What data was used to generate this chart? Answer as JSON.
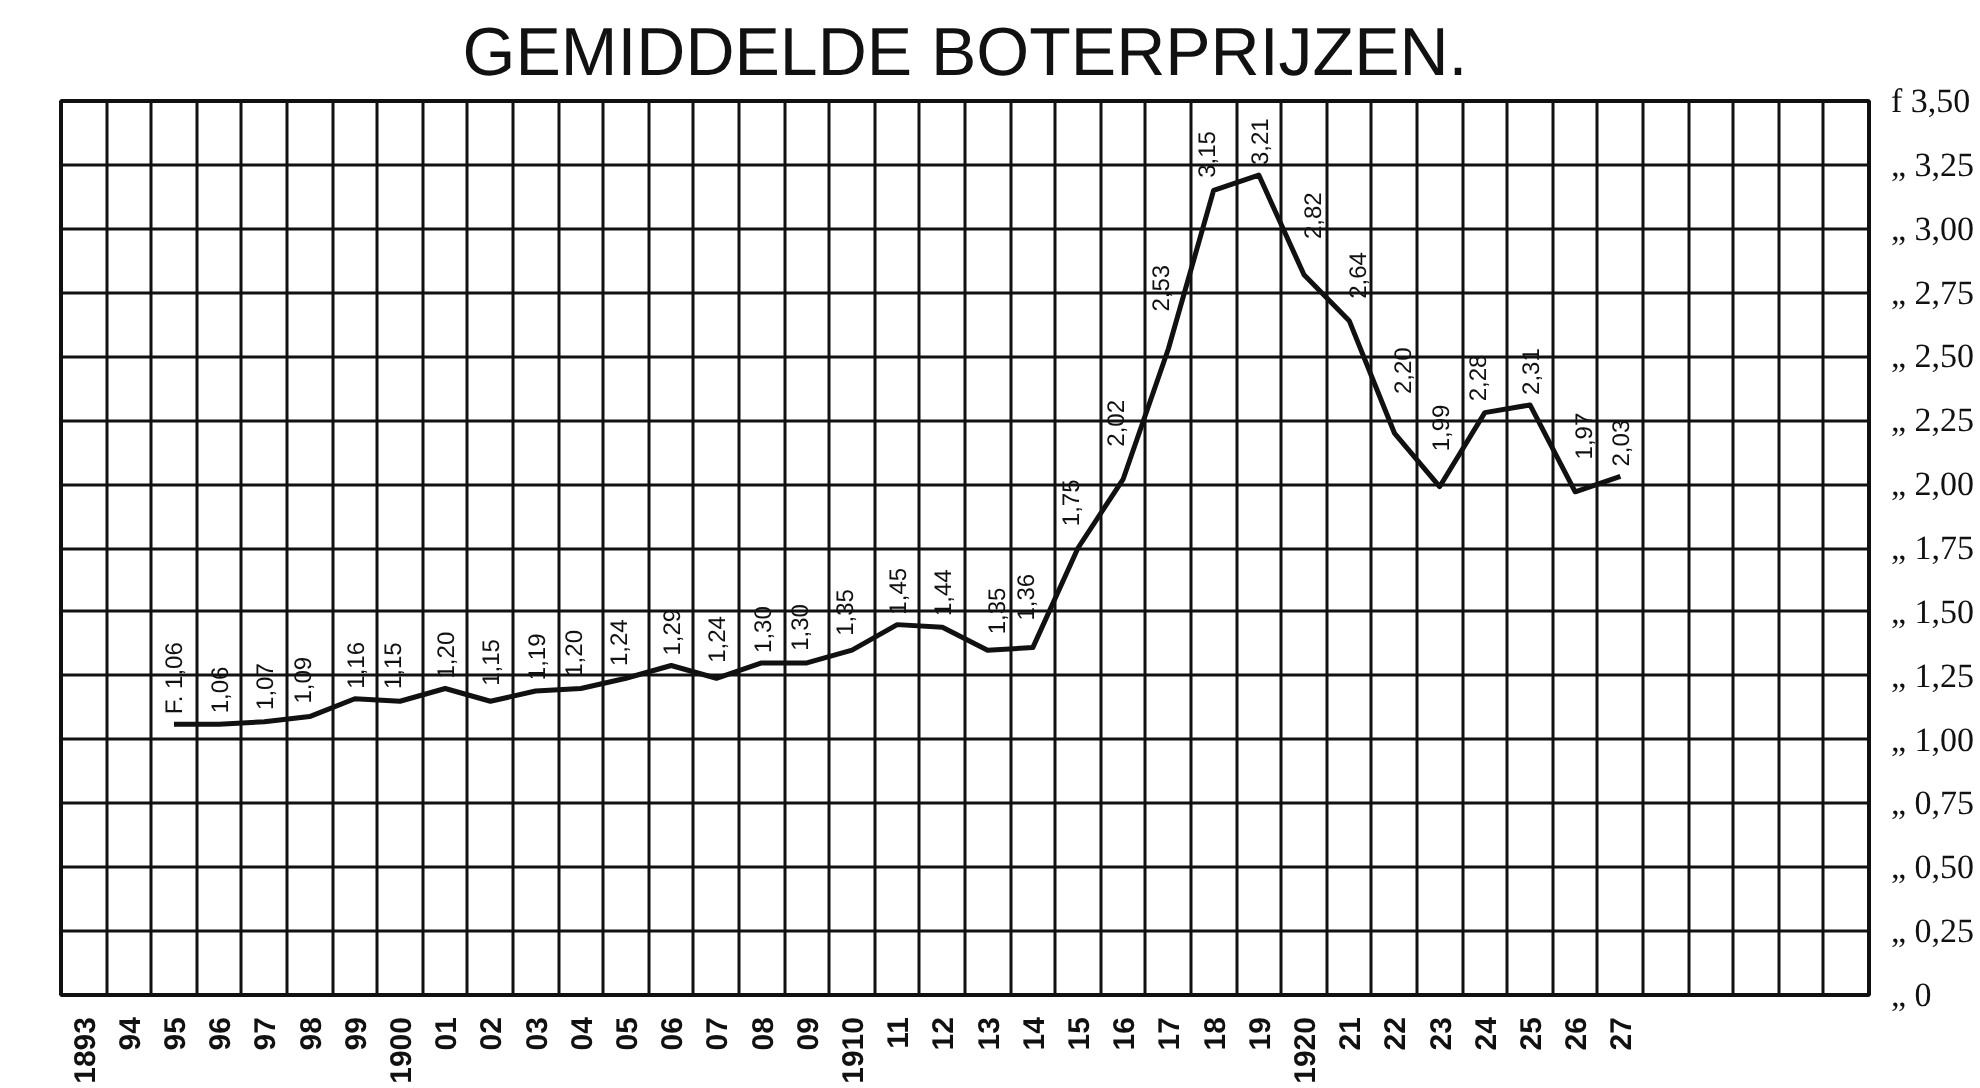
{
  "chart_data": {
    "type": "line",
    "title": "GEMIDDELDE BOTERPRIJZEN.",
    "x": [
      1895,
      1896,
      1897,
      1898,
      1899,
      1900,
      1901,
      1902,
      1903,
      1904,
      1905,
      1906,
      1907,
      1908,
      1909,
      1910,
      1911,
      1912,
      1913,
      1914,
      1915,
      1916,
      1917,
      1918,
      1919,
      1920,
      1921,
      1922,
      1923,
      1924,
      1925,
      1926,
      1927
    ],
    "series": [
      {
        "color": "#111111",
        "values": [
          1.06,
          1.06,
          1.07,
          1.09,
          1.16,
          1.15,
          1.2,
          1.15,
          1.19,
          1.2,
          1.24,
          1.29,
          1.24,
          1.3,
          1.3,
          1.35,
          1.45,
          1.44,
          1.35,
          1.36,
          1.75,
          2.02,
          2.53,
          3.15,
          3.21,
          2.82,
          2.64,
          2.2,
          1.99,
          2.28,
          2.31,
          1.97,
          2.03
        ],
        "value_labels": [
          "F. 1,06",
          "1,06",
          "1,07",
          "1,09",
          "1,16",
          "1,15",
          "1,20",
          "1,15",
          "1,19",
          "1,20",
          "1,24",
          "1,29",
          "1,24",
          "1,30",
          "1,30",
          "1,35",
          "1,45",
          "1,44",
          "1,35",
          "1,36",
          "1,75",
          "2,02",
          "2,53",
          "3,15",
          "3,21",
          "2,82",
          "2,64",
          "2,20",
          "1,99",
          "2,28",
          "2,31",
          "1,97",
          "2,03"
        ]
      }
    ],
    "xlim": [
      1892.5,
      1932.5
    ],
    "xticks": [
      {
        "value": 1893,
        "label": "1893"
      },
      {
        "value": 1894,
        "label": "94"
      },
      {
        "value": 1895,
        "label": "95"
      },
      {
        "value": 1896,
        "label": "96"
      },
      {
        "value": 1897,
        "label": "97"
      },
      {
        "value": 1898,
        "label": "98"
      },
      {
        "value": 1899,
        "label": "99"
      },
      {
        "value": 1900,
        "label": "1900"
      },
      {
        "value": 1901,
        "label": "01"
      },
      {
        "value": 1902,
        "label": "02"
      },
      {
        "value": 1903,
        "label": "03"
      },
      {
        "value": 1904,
        "label": "04"
      },
      {
        "value": 1905,
        "label": "05"
      },
      {
        "value": 1906,
        "label": "06"
      },
      {
        "value": 1907,
        "label": "07"
      },
      {
        "value": 1908,
        "label": "08"
      },
      {
        "value": 1909,
        "label": "09"
      },
      {
        "value": 1910,
        "label": "1910"
      },
      {
        "value": 1911,
        "label": "11"
      },
      {
        "value": 1912,
        "label": "12"
      },
      {
        "value": 1913,
        "label": "13"
      },
      {
        "value": 1914,
        "label": "14"
      },
      {
        "value": 1915,
        "label": "15"
      },
      {
        "value": 1916,
        "label": "16"
      },
      {
        "value": 1917,
        "label": "17"
      },
      {
        "value": 1918,
        "label": "18"
      },
      {
        "value": 1919,
        "label": "19"
      },
      {
        "value": 1920,
        "label": "1920"
      },
      {
        "value": 1921,
        "label": "21"
      },
      {
        "value": 1922,
        "label": "22"
      },
      {
        "value": 1923,
        "label": "23"
      },
      {
        "value": 1924,
        "label": "24"
      },
      {
        "value": 1925,
        "label": "25"
      },
      {
        "value": 1926,
        "label": "26"
      },
      {
        "value": 1927,
        "label": "27"
      }
    ],
    "ylim": [
      0,
      3.5
    ],
    "yticks": [
      {
        "value": 0,
        "label": "„   0"
      },
      {
        "value": 0.25,
        "label": "„ 0,25"
      },
      {
        "value": 0.5,
        "label": "„ 0,50"
      },
      {
        "value": 0.75,
        "label": "„ 0,75"
      },
      {
        "value": 1,
        "label": "„ 1,00"
      },
      {
        "value": 1.25,
        "label": "„ 1,25"
      },
      {
        "value": 1.5,
        "label": "„ 1,50"
      },
      {
        "value": 1.75,
        "label": "„ 1,75"
      },
      {
        "value": 2,
        "label": "„ 2,00"
      },
      {
        "value": 2.25,
        "label": "„ 2,25"
      },
      {
        "value": 2.5,
        "label": "„ 2,50"
      },
      {
        "value": 2.75,
        "label": "„ 2,75"
      },
      {
        "value": 3,
        "label": "„ 3,00"
      },
      {
        "value": 3.25,
        "label": "„ 3,25"
      },
      {
        "value": 3.5,
        "label": "f 3,50"
      }
    ],
    "grid": true,
    "marker": "none",
    "line_style": "solid"
  }
}
